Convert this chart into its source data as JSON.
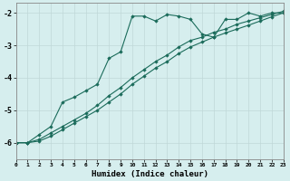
{
  "xlabel": "Humidex (Indice chaleur)",
  "bg_color": "#d6eeee",
  "grid_color": "#c0d8d8",
  "line_color": "#1a6b5a",
  "xlim": [
    0,
    23
  ],
  "ylim": [
    -6.5,
    -1.7
  ],
  "yticks": [
    -6,
    -5,
    -4,
    -3,
    -2
  ],
  "xticks": [
    0,
    1,
    2,
    3,
    4,
    5,
    6,
    7,
    8,
    9,
    10,
    11,
    12,
    13,
    14,
    15,
    16,
    17,
    18,
    19,
    20,
    21,
    22,
    23
  ],
  "line1_x": [
    0,
    1,
    2,
    3,
    4,
    5,
    6,
    7,
    8,
    9,
    10,
    11,
    12,
    13,
    14,
    15,
    16,
    17,
    18,
    19,
    20,
    21,
    22,
    23
  ],
  "line1_y": [
    -6.0,
    -6.0,
    -5.75,
    -5.5,
    -4.75,
    -4.6,
    -4.4,
    -4.2,
    -3.4,
    -3.2,
    -2.1,
    -2.1,
    -2.25,
    -2.05,
    -2.1,
    -2.2,
    -2.65,
    -2.75,
    -2.2,
    -2.2,
    -2.0,
    -2.1,
    -2.0,
    -2.0
  ],
  "line2_x": [
    0,
    1,
    2,
    3,
    4,
    5,
    6,
    7,
    8,
    9,
    10,
    11,
    12,
    13,
    14,
    15,
    16,
    17,
    18,
    19,
    20,
    21,
    22,
    23
  ],
  "line2_y": [
    -6.0,
    -6.0,
    -5.9,
    -5.7,
    -5.5,
    -5.3,
    -5.1,
    -4.85,
    -4.55,
    -4.3,
    -4.0,
    -3.75,
    -3.5,
    -3.3,
    -3.05,
    -2.85,
    -2.75,
    -2.6,
    -2.5,
    -2.35,
    -2.25,
    -2.15,
    -2.05,
    -1.95
  ],
  "line3_x": [
    0,
    1,
    2,
    3,
    4,
    5,
    6,
    7,
    8,
    9,
    10,
    11,
    12,
    13,
    14,
    15,
    16,
    17,
    18,
    19,
    20,
    21,
    22,
    23
  ],
  "line3_y": [
    -6.0,
    -6.0,
    -5.95,
    -5.8,
    -5.6,
    -5.4,
    -5.2,
    -5.0,
    -4.75,
    -4.5,
    -4.2,
    -3.95,
    -3.7,
    -3.5,
    -3.25,
    -3.05,
    -2.9,
    -2.75,
    -2.62,
    -2.5,
    -2.38,
    -2.25,
    -2.12,
    -2.0
  ]
}
